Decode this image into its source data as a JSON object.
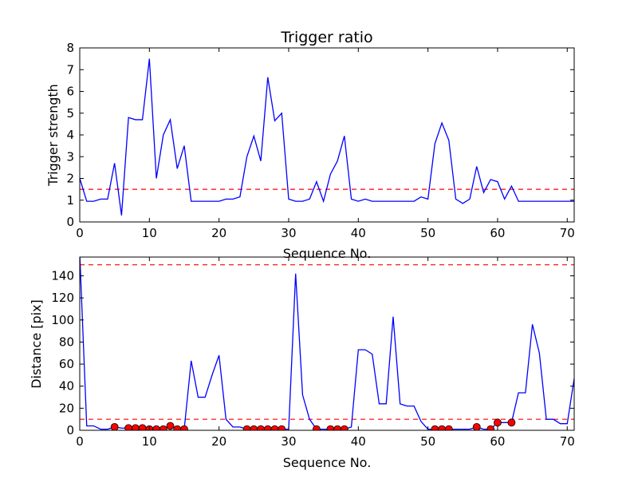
{
  "colors": {
    "line": "#0000ff",
    "threshold": "#ff0000",
    "marker_fill": "#ff0000",
    "marker_edge": "#000000",
    "axes": "#000000",
    "background": "#ffffff"
  },
  "chart_data": [
    {
      "type": "line",
      "title": "Trigger ratio",
      "xlabel": "Sequence No.",
      "ylabel": "Trigger strength",
      "xlim": [
        0,
        71
      ],
      "ylim": [
        0,
        8
      ],
      "xticks": [
        0,
        10,
        20,
        30,
        40,
        50,
        60,
        70
      ],
      "yticks": [
        0,
        1,
        2,
        3,
        4,
        5,
        6,
        7,
        8
      ],
      "grid": false,
      "x": [
        0,
        1,
        2,
        3,
        4,
        5,
        6,
        7,
        8,
        9,
        10,
        11,
        12,
        13,
        14,
        15,
        16,
        17,
        18,
        19,
        20,
        21,
        22,
        23,
        24,
        25,
        26,
        27,
        28,
        29,
        30,
        31,
        32,
        33,
        34,
        35,
        36,
        37,
        38,
        39,
        40,
        41,
        42,
        43,
        44,
        45,
        46,
        47,
        48,
        49,
        50,
        51,
        52,
        53,
        54,
        55,
        56,
        57,
        58,
        59,
        60,
        61,
        62,
        63,
        64,
        65,
        66,
        67,
        68,
        69,
        70,
        71
      ],
      "series": [
        {
          "values": [
            2.0,
            0.95,
            0.95,
            1.05,
            1.05,
            2.7,
            0.3,
            4.8,
            4.7,
            4.7,
            7.5,
            2.0,
            4.0,
            4.7,
            2.45,
            3.5,
            0.95,
            0.95,
            0.95,
            0.95,
            0.95,
            1.05,
            1.05,
            1.15,
            3.0,
            3.95,
            2.8,
            6.65,
            4.65,
            5.0,
            1.05,
            0.95,
            0.95,
            1.05,
            1.85,
            0.95,
            2.2,
            2.8,
            3.95,
            1.05,
            0.95,
            1.05,
            0.95,
            0.95,
            0.95,
            0.95,
            0.95,
            0.95,
            0.95,
            1.15,
            1.05,
            3.6,
            4.55,
            3.75,
            1.05,
            0.85,
            1.05,
            2.55,
            1.35,
            1.95,
            1.85,
            1.05,
            1.65,
            0.95,
            0.95,
            0.95,
            0.95,
            0.95,
            0.95,
            0.95,
            0.95,
            0.95
          ]
        }
      ],
      "threshold_lines": [
        1.5
      ]
    },
    {
      "type": "line",
      "title": "",
      "xlabel": "Sequence No.",
      "ylabel": "Distance [pix]",
      "xlim": [
        0,
        71
      ],
      "ylim": [
        0,
        157
      ],
      "xticks": [
        0,
        10,
        20,
        30,
        40,
        50,
        60,
        70
      ],
      "yticks": [
        0,
        20,
        40,
        60,
        80,
        100,
        120,
        140
      ],
      "grid": false,
      "x": [
        0,
        1,
        2,
        3,
        4,
        5,
        6,
        7,
        8,
        9,
        10,
        11,
        12,
        13,
        14,
        15,
        16,
        17,
        18,
        19,
        20,
        21,
        22,
        23,
        24,
        25,
        26,
        27,
        28,
        29,
        30,
        31,
        32,
        33,
        34,
        35,
        36,
        37,
        38,
        39,
        40,
        41,
        42,
        43,
        44,
        45,
        46,
        47,
        48,
        49,
        50,
        51,
        52,
        53,
        54,
        55,
        56,
        57,
        58,
        59,
        60,
        61,
        62,
        63,
        64,
        65,
        66,
        67,
        68,
        69,
        70,
        71
      ],
      "series": [
        {
          "values": [
            160,
            4,
            4,
            1,
            1,
            3,
            2,
            2,
            2,
            1,
            1,
            1,
            1,
            4,
            1,
            1,
            63,
            30,
            30,
            50,
            68,
            10,
            3,
            3,
            1,
            1,
            1,
            1,
            1,
            1,
            1,
            142,
            32,
            10,
            1,
            1,
            1,
            1,
            1,
            3,
            73,
            73,
            69,
            24,
            24,
            103,
            24,
            22,
            22,
            8,
            1,
            1,
            1,
            1,
            1,
            1,
            1,
            3,
            1,
            1,
            7,
            7,
            7,
            34,
            34,
            96,
            70,
            10,
            10,
            6,
            6,
            47
          ]
        }
      ],
      "markers": {
        "x": [
          5,
          7,
          8,
          9,
          10,
          11,
          12,
          13,
          14,
          15,
          24,
          25,
          26,
          27,
          28,
          29,
          34,
          36,
          37,
          38,
          51,
          52,
          53,
          57,
          59,
          60,
          62
        ],
        "y": [
          3,
          2,
          2,
          2,
          1,
          1,
          1,
          4,
          1,
          1,
          1,
          1,
          1,
          1,
          1,
          1,
          1,
          1,
          1,
          1,
          1,
          1,
          1,
          3,
          1,
          7,
          7
        ]
      },
      "threshold_lines": [
        150,
        10
      ]
    }
  ]
}
